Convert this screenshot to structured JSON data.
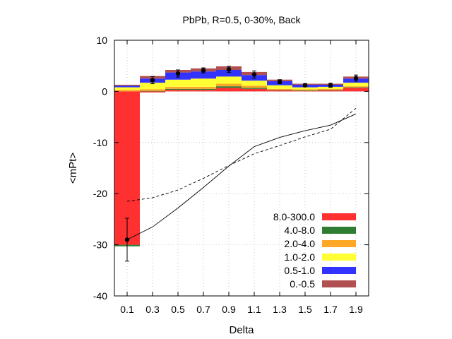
{
  "chart_data": {
    "type": "bar",
    "stacked": true,
    "title": "PbPb, R=0.5, 0-30%, Back",
    "xlabel": "Delta",
    "ylabel": "<mPt>",
    "ylim": [
      -40,
      10
    ],
    "xlim": [
      0,
      2
    ],
    "yticks": [
      10,
      0,
      -10,
      -20,
      -30,
      -40
    ],
    "categories": [
      "0.1",
      "0.3",
      "0.5",
      "0.7",
      "0.9",
      "1.1",
      "1.3",
      "1.5",
      "1.7",
      "1.9"
    ],
    "bin_centers": [
      0.1,
      0.3,
      0.5,
      0.7,
      0.9,
      1.1,
      1.3,
      1.5,
      1.7,
      1.9
    ],
    "bin_width": 0.2,
    "grid": true,
    "legend_position": "bottom-right",
    "series": [
      {
        "name": "8.0-300.0",
        "color": "#ff3030",
        "values": [
          -30.0,
          -0.2,
          0.3,
          0.3,
          0.7,
          0.5,
          0.2,
          0.1,
          0.2,
          0.7
        ]
      },
      {
        "name": "4.0-8.0",
        "color": "#2e7d32",
        "values": [
          -0.3,
          0.1,
          0.2,
          0.2,
          0.3,
          0.2,
          0.1,
          0.1,
          0.1,
          0.1
        ]
      },
      {
        "name": "2.0-4.0",
        "color": "#ffa726",
        "values": [
          0.3,
          0.3,
          0.4,
          0.4,
          0.5,
          0.4,
          0.2,
          0.2,
          0.2,
          0.2
        ]
      },
      {
        "name": "1.0-2.0",
        "color": "#ffff33",
        "values": [
          0.5,
          1.3,
          1.4,
          1.6,
          1.4,
          1.0,
          0.7,
          0.4,
          0.4,
          0.7
        ]
      },
      {
        "name": "0.5-1.0",
        "color": "#3333ff",
        "values": [
          0.3,
          0.8,
          1.4,
          1.4,
          1.3,
          1.1,
          0.8,
          0.5,
          0.4,
          0.8
        ]
      },
      {
        "name": "0.-0.5",
        "color": "#b05050",
        "values": [
          0.2,
          0.5,
          0.5,
          0.6,
          0.7,
          0.6,
          0.3,
          0.2,
          0.2,
          0.4
        ]
      }
    ],
    "points": {
      "y": [
        -29.0,
        2.2,
        3.5,
        4.1,
        4.3,
        3.3,
        1.9,
        1.2,
        1.2,
        2.6
      ],
      "err": [
        4.2,
        0.7,
        0.7,
        0.5,
        0.6,
        0.7,
        0.4,
        0.3,
        0.4,
        0.6
      ]
    },
    "solid_curve": {
      "x": [
        0.1,
        0.3,
        0.5,
        0.7,
        0.9,
        1.1,
        1.3,
        1.5,
        1.7,
        1.9
      ],
      "y": [
        -29.0,
        -26.5,
        -22.8,
        -18.8,
        -14.6,
        -10.8,
        -9.0,
        -7.7,
        -6.6,
        -4.4
      ]
    },
    "dashed_curve": {
      "x": [
        0.1,
        0.3,
        0.5,
        0.7,
        0.9,
        1.1,
        1.3,
        1.5,
        1.7,
        1.9
      ],
      "y": [
        -21.5,
        -20.8,
        -19.3,
        -17.0,
        -14.5,
        -12.2,
        -10.6,
        -8.9,
        -7.4,
        -3.3
      ]
    }
  }
}
